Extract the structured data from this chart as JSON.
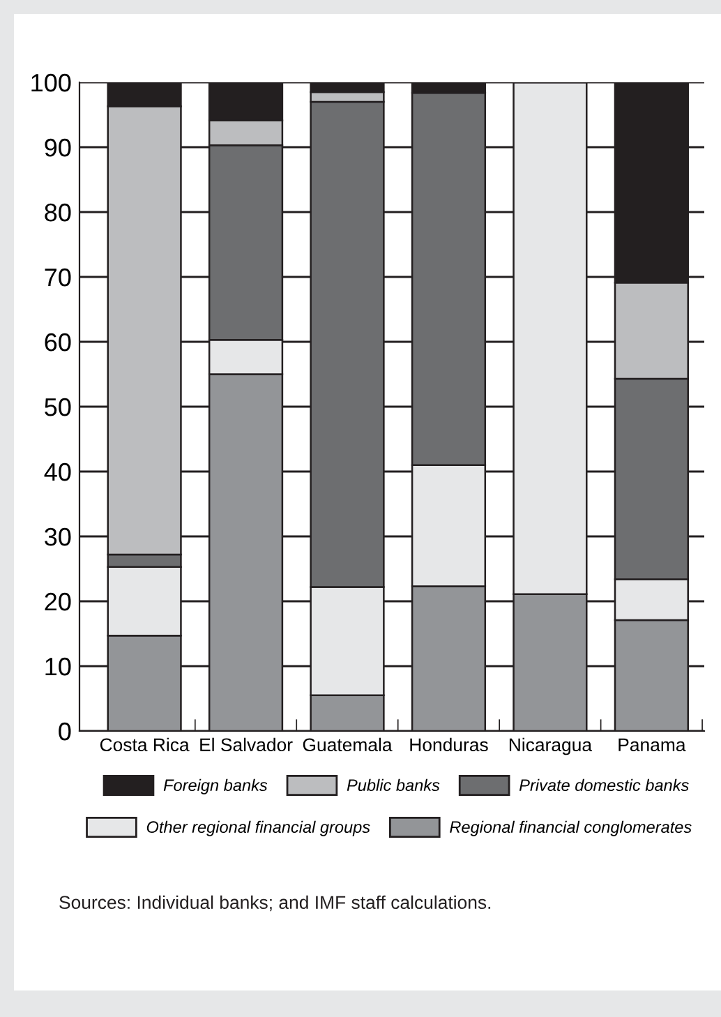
{
  "chart_data": {
    "type": "bar",
    "stacked": true,
    "categories": [
      "Costa Rica",
      "El Salvador",
      "Guatemala",
      "Honduras",
      "Nicaragua",
      "Panama"
    ],
    "series": [
      {
        "name": "Regional financial conglomerates",
        "color": "#939598",
        "values": [
          14.7,
          55,
          5.5,
          22.3,
          21.1,
          17.1
        ]
      },
      {
        "name": "Other regional financial groups",
        "color": "#e6e7e8",
        "values": [
          10.6,
          5.3,
          16.7,
          18.7,
          78.9,
          6.3
        ]
      },
      {
        "name": "Private domestic banks",
        "color": "#6d6e70",
        "values": [
          1.9,
          30,
          74.8,
          57.4,
          0,
          30.9
        ]
      },
      {
        "name": "Public banks",
        "color": "#bcbdbf",
        "values": [
          69.1,
          3.8,
          1.5,
          0,
          0,
          14.8
        ]
      },
      {
        "name": "Foreign banks",
        "color": "#231f20",
        "values": [
          3.7,
          5.9,
          1.5,
          1.6,
          0,
          30.9
        ]
      }
    ],
    "ylim": [
      0,
      100
    ],
    "yticks": [
      0,
      10,
      20,
      30,
      40,
      50,
      60,
      70,
      80,
      90,
      100
    ],
    "grid": "y",
    "legend": "bottom",
    "annotations": [
      "Sources: Individual banks; and IMF staff calculations."
    ]
  }
}
